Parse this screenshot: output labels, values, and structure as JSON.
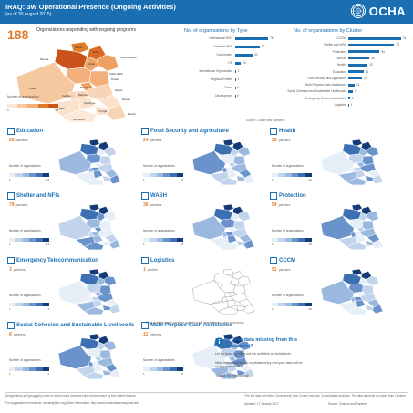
{
  "header": {
    "title": "IRAQ: 3W Operational Presence (Ongoing Activities)",
    "subtitle": "(as of 30 August 2015)",
    "logo_text": "OCHA"
  },
  "overview": {
    "count": "188",
    "label": "Organizations responding with ongoing programs",
    "legend_label": "Number of organizations",
    "legend_min": "0",
    "legend_max": "80",
    "map_labels": [
      "Dahuk",
      "Erbil",
      "Ninewa",
      "Sulaymaniyah",
      "Kirkuk",
      "Salah al-Din",
      "Anbar",
      "Diyala",
      "Baghdad",
      "Babylon",
      "Kerbala",
      "Wassit",
      "Qadissiya",
      "Najaf",
      "Missan",
      "Thi-Qar",
      "Basrah",
      "Muthanna"
    ]
  },
  "by_type": {
    "title": "No. of organisations by Type",
    "rows": [
      {
        "label": "International NGO",
        "value": "76"
      },
      {
        "label": "National NGO",
        "value": "57"
      },
      {
        "label": "Government",
        "value": "40"
      },
      {
        "label": "UN",
        "value": "13"
      },
      {
        "label": "International Organization",
        "value": "1"
      },
      {
        "label": "Regional Entities",
        "value": "1"
      },
      {
        "label": "Donor",
        "value": "0"
      },
      {
        "label": "Development",
        "value": "0"
      }
    ],
    "max": 76
  },
  "by_cluster": {
    "title": "No. of organisations by Cluster",
    "rows": [
      {
        "label": "CCCM",
        "value": "91"
      },
      {
        "label": "Shelter and NFIs",
        "value": "79"
      },
      {
        "label": "Protection",
        "value": "54"
      },
      {
        "label": "WASH",
        "value": "36"
      },
      {
        "label": "Health",
        "value": "33"
      },
      {
        "label": "Education",
        "value": "26"
      },
      {
        "label": "Food Security and Agriculture",
        "value": "24"
      },
      {
        "label": "Multi-Purpose Cash Assistance",
        "value": "11"
      },
      {
        "label": "Social Cohesion and Sustainable Livelihoods",
        "value": "8"
      },
      {
        "label": "Emergency Telecommunication",
        "value": "3"
      },
      {
        "label": "Logistics",
        "value": "1"
      }
    ],
    "max": 91,
    "note": "Source: Cluster and Partners"
  },
  "clusters": [
    {
      "name": "Education",
      "count": "26",
      "partners_label": "partners",
      "legend_label": "Number of organisations",
      "min": "1",
      "max": "14"
    },
    {
      "name": "Food Security and Agriculture",
      "count": "24",
      "partners_label": "partners",
      "legend_label": "Number of organisations",
      "min": "1",
      "max": "15"
    },
    {
      "name": "Health",
      "count": "33",
      "partners_label": "partners",
      "legend_label": "Number of organisations",
      "min": "1",
      "max": "22"
    },
    {
      "name": "Shelter and NFIs",
      "count": "79",
      "partners_label": "partners",
      "legend_label": "Number of organisations",
      "min": "1",
      "max": "43"
    },
    {
      "name": "WASH",
      "count": "36",
      "partners_label": "partners",
      "legend_label": "Number of organisations",
      "min": "1",
      "max": "18"
    },
    {
      "name": "Protection",
      "count": "54",
      "partners_label": "partners",
      "legend_label": "Number of organisations",
      "min": "1",
      "max": "40"
    },
    {
      "name": "Emergency Telecommunication",
      "count": "3",
      "partners_label": "partners",
      "legend_label": "Number of organisations",
      "min": "1",
      "max": "3"
    },
    {
      "name": "Logistics",
      "count": "1",
      "partners_label": "partner",
      "legend_label": "",
      "min": "",
      "max": ""
    },
    {
      "name": "CCCM",
      "count": "91",
      "partners_label": "partners",
      "legend_label": "Number of organisations",
      "min": "1",
      "max": "60"
    },
    {
      "name": "Social Cohesion and Sustainable Livelihoods",
      "count": "8",
      "partners_label": "partners",
      "legend_label": "Number of organisations",
      "min": "1",
      "max": "4"
    },
    {
      "name": "Multi-Purpose Cash Assistance",
      "count": "11",
      "partners_label": "partners",
      "legend_label": "Number of organisations",
      "min": "1",
      "max": "8"
    }
  ],
  "logistics_note": "The Logistics cluster provides support for all humanitarian actors in all areas.",
  "missing": {
    "title": "Is your data missing from this document?",
    "p1": "Let us know by filling out the activities on ActivityInfo",
    "p2": "https://www.activityinfo.org/#data-entry and your data will be on the next version.",
    "p3": "Thanks for helping out!"
  },
  "footer": {
    "left1": "Designations and geography used on these maps does not imply endorsement by the United Nations.",
    "left2": "For suggestions/corrections: ochairaq@un.org | More information: http://www.humanitarianresponse.info",
    "right1": "The 3W data not reflect Government, Non Cluster and Non Consolidated activities. The data depends on inputs from Clusters.",
    "right2": "Updated: 17 January 2017",
    "right3": "Source: Clusters and Partners"
  },
  "colors": {
    "brand_blue": "#1a6fb3",
    "orange": "#e07b2c",
    "map_light": "#dbe6f4",
    "map_dark": "#143a78"
  }
}
